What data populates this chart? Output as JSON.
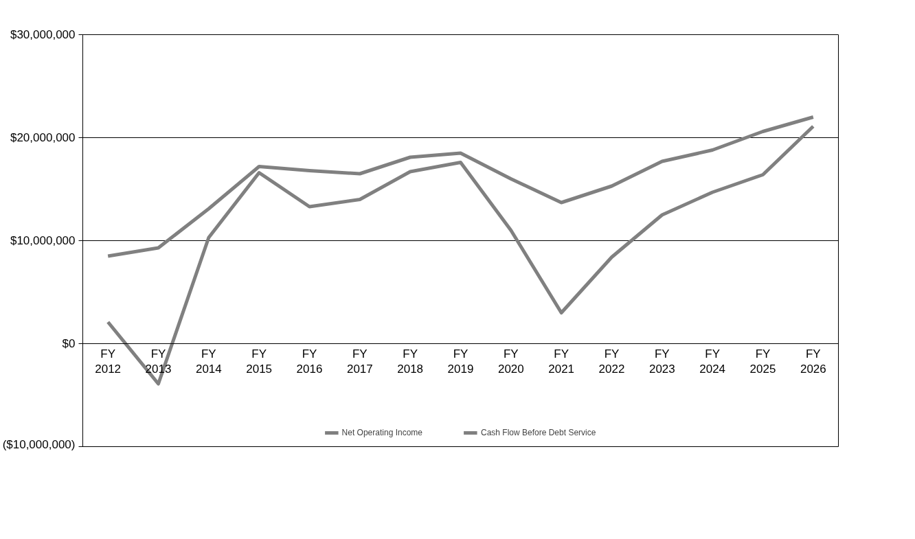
{
  "chart_data": {
    "type": "line",
    "categories": [
      "FY 2012",
      "FY 2013",
      "FY 2014",
      "FY 2015",
      "FY 2016",
      "FY 2017",
      "FY 2018",
      "FY 2019",
      "FY 2020",
      "FY 2021",
      "FY 2022",
      "FY 2023",
      "FY 2024",
      "FY 2025",
      "FY 2026"
    ],
    "series": [
      {
        "name": "Net Operating Income",
        "color": "#808080",
        "values": [
          8500000,
          9300000,
          13100000,
          17200000,
          16800000,
          16500000,
          18100000,
          18500000,
          16000000,
          13700000,
          15300000,
          17700000,
          18800000,
          20600000,
          22000000
        ]
      },
      {
        "name": "Cash Flow Before Debt Service",
        "color": "#808080",
        "values": [
          2100000,
          -3900000,
          10300000,
          16600000,
          13300000,
          14000000,
          16700000,
          17600000,
          11000000,
          3000000,
          8400000,
          12500000,
          14700000,
          16400000,
          21100000
        ]
      }
    ],
    "ylim": [
      -10000000,
      30000000
    ],
    "yticks": [
      {
        "value": -10000000,
        "label": "($10,000,000)"
      },
      {
        "value": 0,
        "label": "$0"
      },
      {
        "value": 10000000,
        "label": "$10,000,000"
      },
      {
        "value": 20000000,
        "label": "$20,000,000"
      },
      {
        "value": 30000000,
        "label": "$30,000,000"
      }
    ],
    "grid": "y",
    "legend": "bottom",
    "marker": "none",
    "line_style": "solid"
  }
}
